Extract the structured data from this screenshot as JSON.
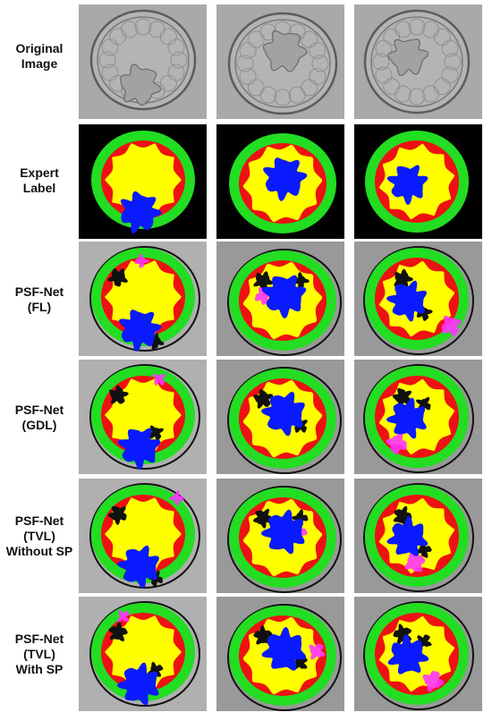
{
  "rows": [
    {
      "label_lines": [
        "Original",
        "Image"
      ],
      "kind": "original"
    },
    {
      "label_lines": [
        "Expert",
        "Label"
      ],
      "kind": "label"
    },
    {
      "label_lines": [
        "PSF-Net",
        "(FL)"
      ],
      "kind": "pred"
    },
    {
      "label_lines": [
        "PSF-Net",
        "(GDL)"
      ],
      "kind": "pred"
    },
    {
      "label_lines": [
        "PSF-Net",
        "(TVL)",
        "Without SP"
      ],
      "kind": "pred"
    },
    {
      "label_lines": [
        "PSF-Net",
        "(TVL)",
        "With SP"
      ],
      "kind": "pred"
    }
  ],
  "columns": 3,
  "colors": {
    "zona": "#22dd22",
    "trophectoderm": "#ee1111",
    "blastocoel": "#ffff00",
    "icm": "#0a1aff",
    "error": "#ff33ff",
    "background_black": "#000000",
    "microscope_gray": "#a9a9a9"
  }
}
